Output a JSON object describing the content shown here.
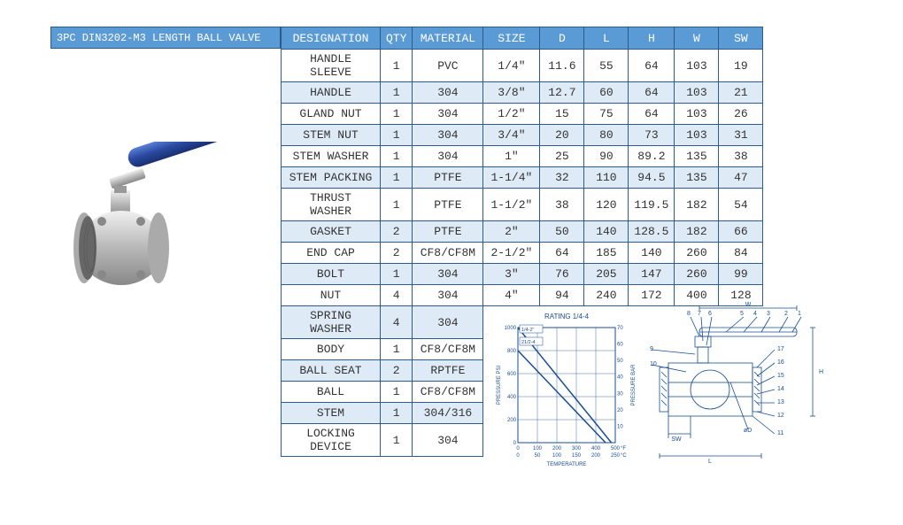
{
  "title": "3PC DIN3202-M3 LENGTH BALL VALVE",
  "parts_headers": [
    "DESIGNATION",
    "QTY",
    "MATERIAL"
  ],
  "dim_headers": [
    "SIZE",
    "D",
    "L",
    "H",
    "W",
    "SW"
  ],
  "parts": [
    {
      "des": "HANDLE SLEEVE",
      "qty": "1",
      "mat": "PVC"
    },
    {
      "des": "HANDLE",
      "qty": "1",
      "mat": "304"
    },
    {
      "des": "GLAND NUT",
      "qty": "1",
      "mat": "304"
    },
    {
      "des": "STEM NUT",
      "qty": "1",
      "mat": "304"
    },
    {
      "des": "STEM WASHER",
      "qty": "1",
      "mat": "304"
    },
    {
      "des": "STEM PACKING",
      "qty": "1",
      "mat": "PTFE"
    },
    {
      "des": "THRUST WASHER",
      "qty": "1",
      "mat": "PTFE"
    },
    {
      "des": "GASKET",
      "qty": "2",
      "mat": "PTFE"
    },
    {
      "des": "END CAP",
      "qty": "2",
      "mat": "CF8/CF8M"
    },
    {
      "des": "BOLT",
      "qty": "1",
      "mat": "304"
    },
    {
      "des": "NUT",
      "qty": "4",
      "mat": "304"
    },
    {
      "des": "SPRING WASHER",
      "qty": "4",
      "mat": "304"
    },
    {
      "des": "BODY",
      "qty": "1",
      "mat": "CF8/CF8M"
    },
    {
      "des": "BALL SEAT",
      "qty": "2",
      "mat": "RPTFE"
    },
    {
      "des": "BALL",
      "qty": "1",
      "mat": "CF8/CF8M"
    },
    {
      "des": "STEM",
      "qty": "1",
      "mat": "304/316"
    },
    {
      "des": "LOCKING DEVICE",
      "qty": "1",
      "mat": "304"
    }
  ],
  "dims": [
    {
      "size": "1/4\"",
      "d": "11.6",
      "l": "55",
      "h": "64",
      "w": "103",
      "sw": "19"
    },
    {
      "size": "3/8\"",
      "d": "12.7",
      "l": "60",
      "h": "64",
      "w": "103",
      "sw": "21"
    },
    {
      "size": "1/2\"",
      "d": "15",
      "l": "75",
      "h": "64",
      "w": "103",
      "sw": "26"
    },
    {
      "size": "3/4\"",
      "d": "20",
      "l": "80",
      "h": "73",
      "w": "103",
      "sw": "31"
    },
    {
      "size": "1\"",
      "d": "25",
      "l": "90",
      "h": "89.2",
      "w": "135",
      "sw": "38"
    },
    {
      "size": "1-1/4\"",
      "d": "32",
      "l": "110",
      "h": "94.5",
      "w": "135",
      "sw": "47"
    },
    {
      "size": "1-1/2\"",
      "d": "38",
      "l": "120",
      "h": "119.5",
      "w": "182",
      "sw": "54"
    },
    {
      "size": "2\"",
      "d": "50",
      "l": "140",
      "h": "128.5",
      "w": "182",
      "sw": "66"
    },
    {
      "size": "2-1/2\"",
      "d": "64",
      "l": "185",
      "h": "140",
      "w": "260",
      "sw": "84"
    },
    {
      "size": "3\"",
      "d": "76",
      "l": "205",
      "h": "147",
      "w": "260",
      "sw": "99"
    },
    {
      "size": "4\"",
      "d": "94",
      "l": "240",
      "h": "172",
      "w": "400",
      "sw": "128"
    }
  ],
  "chart": {
    "title": "RATING 1/4-4",
    "ylabel_left": "PRESSURE PSI",
    "ylabel_right": "PRESSURE BAR",
    "xlabel": "TEMPERATURE",
    "y_ticks_left": [
      0,
      200,
      400,
      600,
      800,
      1000
    ],
    "y_ticks_right": [
      10,
      20,
      30,
      40,
      50,
      60,
      70
    ],
    "x_ticks_f": [
      0,
      100,
      200,
      300,
      400,
      500
    ],
    "x_ticks_c": [
      0,
      50,
      100,
      150,
      200,
      250
    ],
    "x_unit_f": "°F",
    "x_unit_c": "°C",
    "series": [
      {
        "label": "1/4-2\"",
        "points": [
          [
            0,
            1000
          ],
          [
            480,
            0
          ]
        ],
        "color": "#1a4d8f",
        "width": 1.5
      },
      {
        "label": "21/2-4",
        "points": [
          [
            0,
            800
          ],
          [
            450,
            0
          ]
        ],
        "color": "#1a4d8f",
        "width": 1.5
      }
    ],
    "grid_color": "#1a4d8f",
    "bg": "#ffffff"
  },
  "diagram": {
    "callouts_top": [
      "8",
      "7",
      "6",
      "5",
      "4",
      "3",
      "2",
      "1"
    ],
    "callouts_left": [
      "9",
      "10"
    ],
    "callouts_right": [
      "17",
      "16",
      "15",
      "14",
      "13",
      "12",
      "11"
    ],
    "dim_labels": [
      "W",
      "H",
      "SW",
      "øD",
      "L"
    ],
    "line_color": "#1a4d8f"
  },
  "colors": {
    "header_bg": "#5b9bd5",
    "header_fg": "#ffffff",
    "border": "#2e5c8a",
    "row_alt": "#deeaf6",
    "row_norm": "#ffffff",
    "text": "#333333"
  }
}
